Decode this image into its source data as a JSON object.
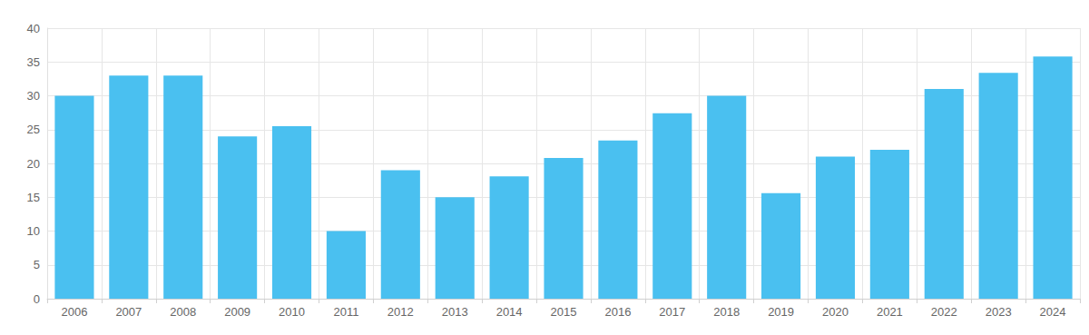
{
  "chart_data": {
    "type": "bar",
    "categories": [
      "2006",
      "2007",
      "2008",
      "2009",
      "2010",
      "2011",
      "2012",
      "2013",
      "2014",
      "2015",
      "2016",
      "2017",
      "2018",
      "2019",
      "2020",
      "2021",
      "2022",
      "2023",
      "2024"
    ],
    "values": [
      30,
      33,
      33,
      24,
      25.5,
      10,
      19,
      15,
      18.1,
      20.8,
      23.4,
      27.4,
      30,
      15.6,
      21,
      22,
      31,
      33.4,
      35.8
    ],
    "color": "#4ac0f0",
    "ylim": [
      0,
      40
    ],
    "yticks": [
      0,
      5,
      10,
      15,
      20,
      25,
      30,
      35,
      40
    ],
    "grid": true
  }
}
